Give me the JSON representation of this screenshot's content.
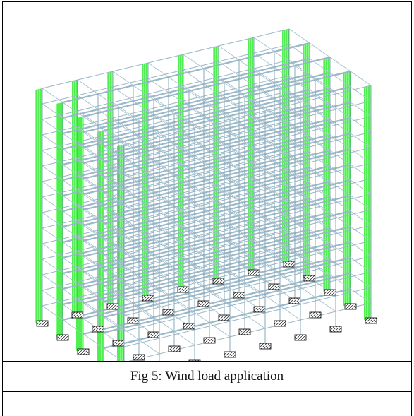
{
  "figure": {
    "caption": "Fig 5: Wind load application"
  }
}
